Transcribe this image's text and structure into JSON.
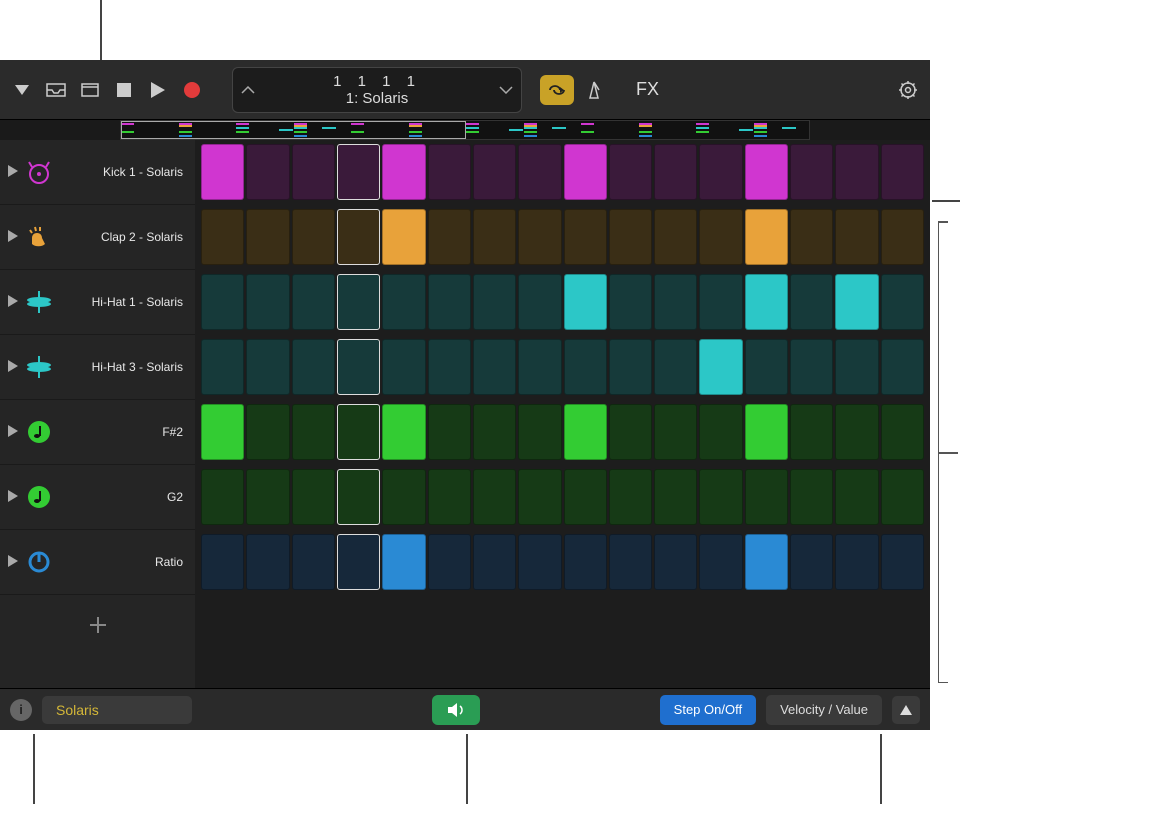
{
  "toolbar": {
    "lcd_top": "1  1  1     1",
    "lcd_bottom": "1: Solaris",
    "fx_label": "FX"
  },
  "tracks": [
    {
      "label": "Kick 1 - Solaris",
      "icon": "kick",
      "icon_color": "#d036d0",
      "on_color": "#d036d0",
      "off_color": "#3a1a3a",
      "steps": [
        1,
        0,
        0,
        0,
        1,
        0,
        0,
        0,
        1,
        0,
        0,
        0,
        1,
        0,
        0,
        0
      ]
    },
    {
      "label": "Clap 2 - Solaris",
      "icon": "clap",
      "icon_color": "#e8a23a",
      "on_color": "#e8a23a",
      "off_color": "#3a2e16",
      "steps": [
        0,
        0,
        0,
        0,
        1,
        0,
        0,
        0,
        0,
        0,
        0,
        0,
        1,
        0,
        0,
        0
      ]
    },
    {
      "label": "Hi-Hat 1 - Solaris",
      "icon": "hihat",
      "icon_color": "#2cc7c7",
      "on_color": "#2cc7c7",
      "off_color": "#163a3a",
      "steps": [
        0,
        0,
        0,
        0,
        0,
        0,
        0,
        0,
        1,
        0,
        0,
        0,
        1,
        0,
        1,
        0
      ]
    },
    {
      "label": "Hi-Hat 3 - Solaris",
      "icon": "hihat",
      "icon_color": "#2cc7c7",
      "on_color": "#2cc7c7",
      "off_color": "#163a3a",
      "steps": [
        0,
        0,
        0,
        0,
        0,
        0,
        0,
        0,
        0,
        0,
        0,
        1,
        0,
        0,
        0,
        0
      ]
    },
    {
      "label": "F#2",
      "icon": "note",
      "icon_color": "#33cc33",
      "on_color": "#33cc33",
      "off_color": "#163a16",
      "steps": [
        1,
        0,
        0,
        0,
        1,
        0,
        0,
        0,
        1,
        0,
        0,
        0,
        1,
        0,
        0,
        0
      ]
    },
    {
      "label": "G2",
      "icon": "note",
      "icon_color": "#33cc33",
      "on_color": "#33cc33",
      "off_color": "#163a16",
      "steps": [
        0,
        0,
        0,
        0,
        0,
        0,
        0,
        0,
        0,
        0,
        0,
        0,
        0,
        0,
        0,
        0
      ]
    },
    {
      "label": "Ratio",
      "icon": "knob",
      "icon_color": "#2a8ad4",
      "on_color": "#2a8ad4",
      "off_color": "#16283a",
      "steps": [
        0,
        0,
        0,
        0,
        1,
        0,
        0,
        0,
        0,
        0,
        0,
        0,
        1,
        0,
        0,
        0
      ]
    }
  ],
  "playhead_step": 3,
  "footer": {
    "pattern_name": "Solaris",
    "step_mode": "Step On/Off",
    "velocity_mode": "Velocity / Value"
  },
  "colors": {
    "toolbar_bg": "#2b2b2b",
    "app_bg": "#1a1a1a",
    "record": "#e23b3b",
    "loop_bg": "#c9a227"
  }
}
